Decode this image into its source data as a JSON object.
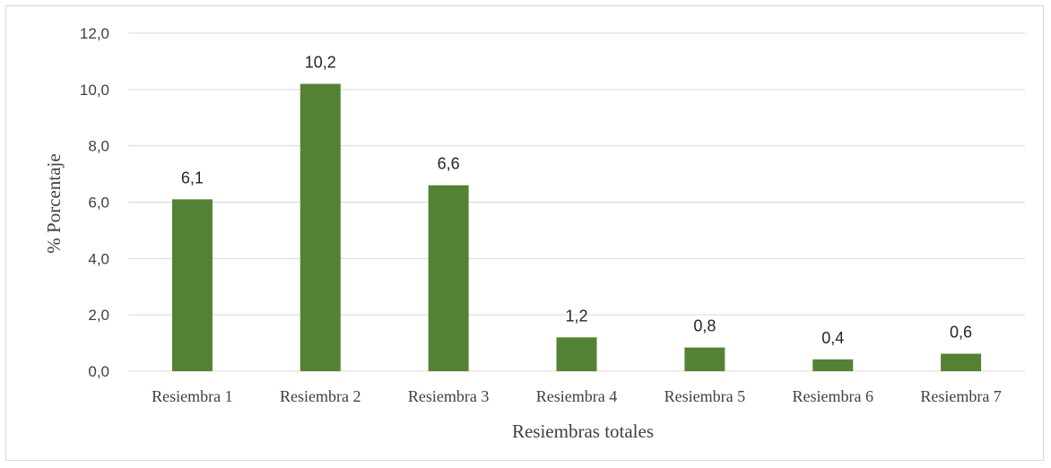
{
  "chart_data": {
    "type": "bar",
    "categories": [
      "Resiembra 1",
      "Resiembra 2",
      "Resiembra 3",
      "Resiembra 4",
      "Resiembra 5",
      "Resiembra 6",
      "Resiembra 7"
    ],
    "values": [
      6.1,
      10.2,
      6.6,
      1.2,
      0.84,
      0.42,
      0.62
    ],
    "data_labels": [
      "6,1",
      "10,2",
      "6,6",
      "1,2",
      "0,8",
      "0,4",
      "0,6"
    ],
    "y_ticks": [
      "0,0",
      "2,0",
      "4,0",
      "6,0",
      "8,0",
      "10,0",
      "12,0"
    ],
    "ylim": [
      0,
      12
    ],
    "ylabel": "% Porcentaje",
    "xlabel": "Resiembras totales",
    "bar_color": "#548235",
    "grid": true,
    "legend": "none"
  }
}
